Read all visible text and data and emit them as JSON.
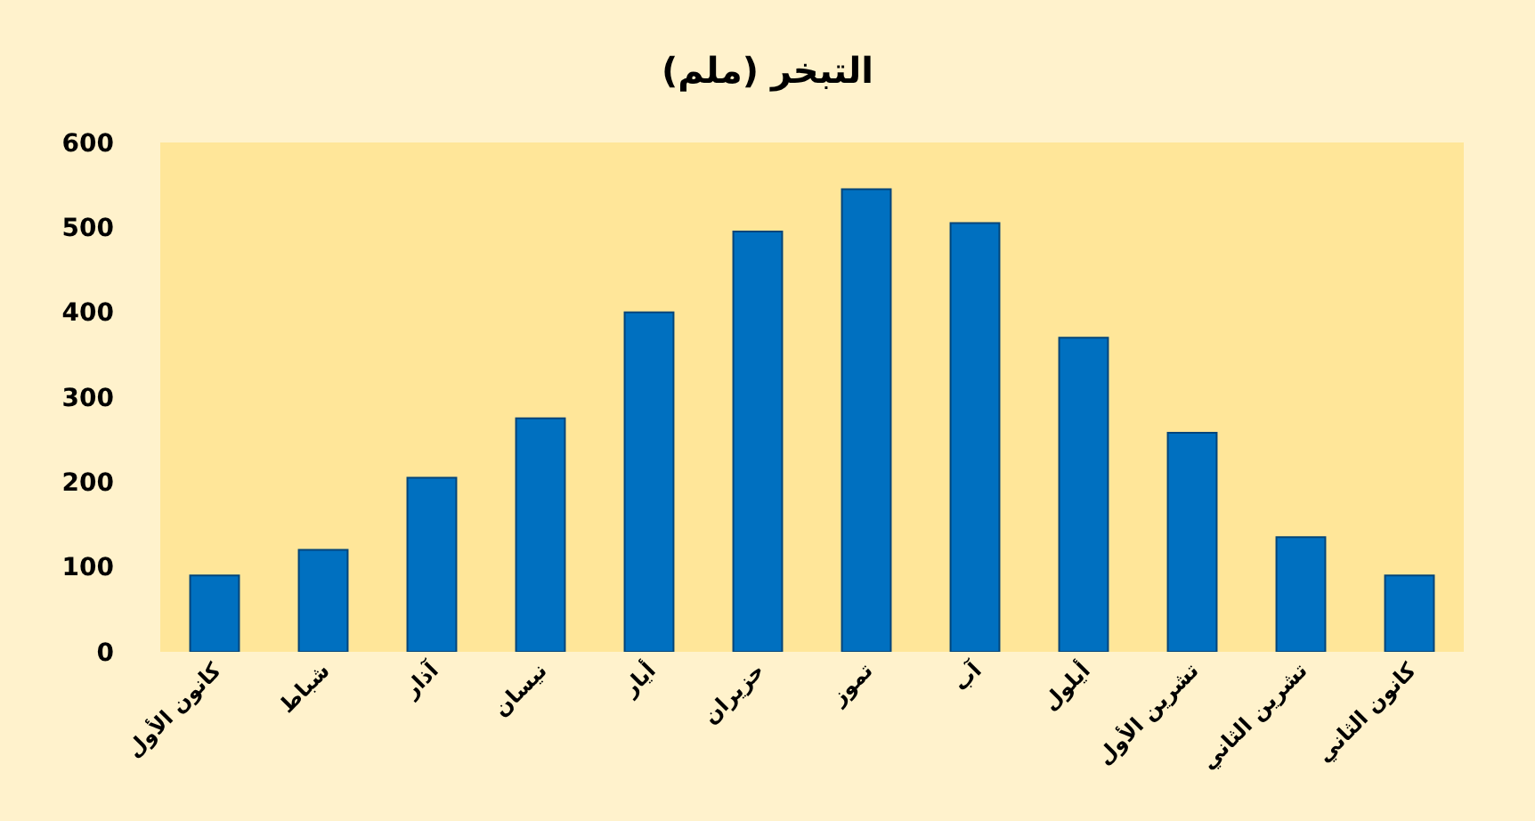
{
  "chart_data": {
    "type": "bar",
    "title": "التبخر (ملم)",
    "categories": [
      "كانون الأول",
      "شباط",
      "آذار",
      "نيسان",
      "أيار",
      "حزيران",
      "تموز",
      "آب",
      "أيلول",
      "تشرين الأول",
      "تشرين الثاني",
      "كانون الثاني"
    ],
    "values": [
      90,
      120,
      205,
      275,
      400,
      495,
      545,
      505,
      370,
      258,
      135,
      90
    ],
    "color": "#0070c0",
    "ylim": [
      0,
      600
    ],
    "yticks": [
      0,
      100,
      200,
      300,
      400,
      500,
      600
    ],
    "grid": false
  }
}
